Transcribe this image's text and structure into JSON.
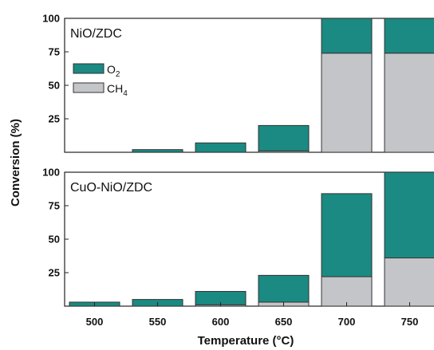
{
  "chart_data": [
    {
      "type": "bar",
      "stacked": true,
      "panel_label": "NiO/ZDC",
      "categories": [
        "500",
        "550",
        "600",
        "650",
        "700",
        "750"
      ],
      "series": [
        {
          "name": "CH4",
          "values": [
            0,
            0,
            0,
            1,
            74,
            74
          ]
        },
        {
          "name": "O2",
          "values": [
            0,
            2,
            7,
            19,
            26,
            26
          ]
        }
      ],
      "ylim": [
        0,
        100
      ],
      "yticks": [
        "100",
        "75",
        "50",
        "25"
      ]
    },
    {
      "type": "bar",
      "stacked": true,
      "panel_label": "CuO-NiO/ZDC",
      "categories": [
        "500",
        "550",
        "600",
        "650",
        "700",
        "750"
      ],
      "series": [
        {
          "name": "CH4",
          "values": [
            0,
            0,
            1,
            3,
            22,
            36
          ]
        },
        {
          "name": "O2",
          "values": [
            3,
            5,
            10,
            20,
            62,
            64
          ]
        }
      ],
      "ylim": [
        0,
        100
      ],
      "yticks": [
        "100",
        "75",
        "50",
        "25"
      ]
    }
  ],
  "xlabel": "Temperature (°C)",
  "ylabel": "Conversion (%)",
  "legend": {
    "placement": "top-left of upper panel",
    "items": [
      {
        "label": "O",
        "subscript": "2",
        "color": "#1a8a82"
      },
      {
        "label": "CH",
        "subscript": "4",
        "color": "#c3c5c8"
      }
    ]
  },
  "colors": {
    "O2": "#1a8a82",
    "CH4": "#c3c5c8",
    "edge": "#333333"
  }
}
